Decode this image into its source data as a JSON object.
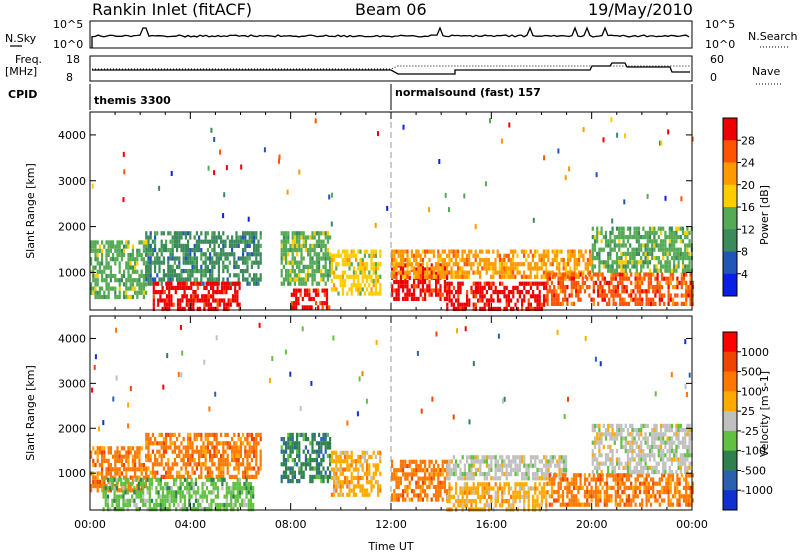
{
  "header": {
    "station": "Rankin Inlet (fitACF)",
    "beam": "Beam 06",
    "date": "19/May/2010"
  },
  "summary_panels": {
    "nsky_label": "N.Sky",
    "nsearch_label": "N.Search",
    "freq_label": "Freq.",
    "freq_unit": "[MHz]",
    "nave_label": "Nave",
    "cpid_label": "CPID",
    "nsky_ticks": [
      "10^5",
      "10^0"
    ],
    "nsearch_ticks": [
      "10^5",
      "10^0"
    ],
    "freq_ticks": [
      "18",
      "8"
    ],
    "nave_ticks": [
      "60",
      "0"
    ],
    "cpid_segments": [
      {
        "start_hour": 0,
        "label": "themis 3300"
      },
      {
        "start_hour": 12,
        "label": "normalsound (fast) 157"
      }
    ]
  },
  "colors": {
    "power": [
      "#0a1ee6",
      "#2255b8",
      "#3a8a5a",
      "#55aa55",
      "#ffcc00",
      "#ff9900",
      "#ff5500",
      "#ee0000"
    ],
    "velocity": [
      "#1030d0",
      "#2a60b0",
      "#2f7f4f",
      "#60c040",
      "#c0c0c0",
      "#ffaa00",
      "#ff7700",
      "#ee4400",
      "#ff0000"
    ]
  },
  "chart_data": [
    {
      "type": "heatmap",
      "name": "power-panel",
      "ylabel": "Slant Range [km]",
      "xlabel": "",
      "xlim": [
        0,
        24
      ],
      "ylim": [
        180,
        4500
      ],
      "yticks": [
        "1000",
        "2000",
        "3000",
        "4000"
      ],
      "colorbar_label": "Power [dB]",
      "colorbar_ticks": [
        "4",
        "8",
        "12",
        "16",
        "20",
        "24",
        "28"
      ],
      "regions": [
        {
          "x0": 0.0,
          "x1": 2.2,
          "y0": 500,
          "y1": 1700,
          "level": 3
        },
        {
          "x0": 2.2,
          "x1": 6.8,
          "y0": 800,
          "y1": 1900,
          "level": 2
        },
        {
          "x0": 2.5,
          "x1": 6.0,
          "y0": 200,
          "y1": 800,
          "level": 7
        },
        {
          "x0": 7.6,
          "x1": 9.6,
          "y0": 800,
          "y1": 1900,
          "level": 3
        },
        {
          "x0": 8.0,
          "x1": 9.5,
          "y0": 200,
          "y1": 650,
          "level": 7
        },
        {
          "x0": 9.6,
          "x1": 11.6,
          "y0": 500,
          "y1": 1500,
          "level": 4
        },
        {
          "x0": 12.0,
          "x1": 14.2,
          "y0": 400,
          "y1": 1200,
          "level": 7
        },
        {
          "x0": 14.2,
          "x1": 18.2,
          "y0": 200,
          "y1": 800,
          "level": 7
        },
        {
          "x0": 12.0,
          "x1": 20.0,
          "y0": 900,
          "y1": 1500,
          "level": 5
        },
        {
          "x0": 18.2,
          "x1": 24.0,
          "y0": 300,
          "y1": 1000,
          "level": 6
        },
        {
          "x0": 20.0,
          "x1": 24.0,
          "y0": 1000,
          "y1": 2000,
          "level": 3
        }
      ]
    },
    {
      "type": "heatmap",
      "name": "velocity-panel",
      "ylabel": "Slant Range [km]",
      "xlabel": "Time UT",
      "xlim": [
        0,
        24
      ],
      "ylim": [
        180,
        4500
      ],
      "xticks": [
        "00:00",
        "04:00",
        "08:00",
        "12:00",
        "16:00",
        "20:00",
        "00:00"
      ],
      "yticks": [
        "1000",
        "2000",
        "3000",
        "4000"
      ],
      "colorbar_label": "Velocity [m s-1]",
      "colorbar_ticks": [
        "1000",
        "500",
        "100",
        "25",
        "-25",
        "-100",
        "-500",
        "-1000"
      ],
      "regions": [
        {
          "x0": 0.0,
          "x1": 2.2,
          "y0": 600,
          "y1": 1600,
          "level": 6
        },
        {
          "x0": 2.2,
          "x1": 6.8,
          "y0": 900,
          "y1": 1900,
          "level": 6
        },
        {
          "x0": 0.5,
          "x1": 6.5,
          "y0": 200,
          "y1": 900,
          "level": 3
        },
        {
          "x0": 7.6,
          "x1": 9.6,
          "y0": 800,
          "y1": 1900,
          "level": 2
        },
        {
          "x0": 9.6,
          "x1": 11.6,
          "y0": 500,
          "y1": 1500,
          "level": 5
        },
        {
          "x0": 12.0,
          "x1": 14.2,
          "y0": 400,
          "y1": 1300,
          "level": 6
        },
        {
          "x0": 14.2,
          "x1": 18.2,
          "y0": 200,
          "y1": 800,
          "level": 5
        },
        {
          "x0": 14.2,
          "x1": 19.0,
          "y0": 900,
          "y1": 1400,
          "level": 4
        },
        {
          "x0": 18.2,
          "x1": 24.0,
          "y0": 300,
          "y1": 1000,
          "level": 6
        },
        {
          "x0": 20.0,
          "x1": 24.0,
          "y0": 1000,
          "y1": 2100,
          "level": 4
        }
      ]
    }
  ]
}
